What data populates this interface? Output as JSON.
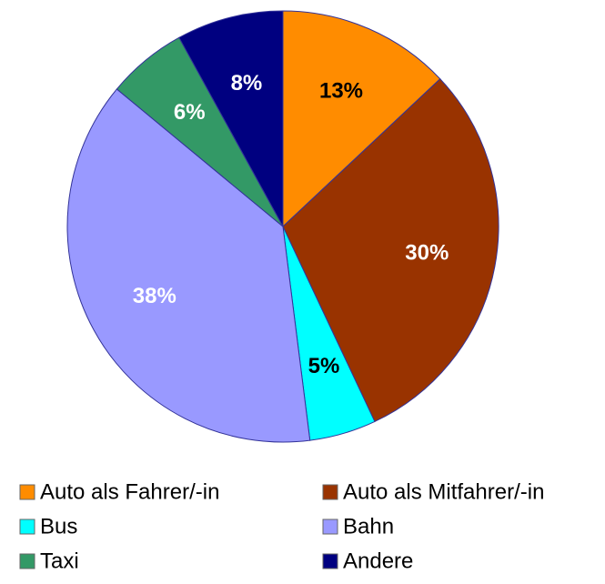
{
  "chart_data": {
    "type": "pie",
    "categories": [
      "Auto als Fahrer/-in",
      "Auto als Mitfahrer/-in",
      "Bus",
      "Bahn",
      "Taxi",
      "Andere"
    ],
    "values": [
      13,
      30,
      5,
      38,
      6,
      8
    ],
    "value_labels": [
      "13%",
      "30%",
      "5%",
      "38%",
      "6%",
      "8%"
    ],
    "colors": [
      "#ff8c00",
      "#993300",
      "#00ffff",
      "#9999ff",
      "#339966",
      "#000080"
    ],
    "label_colors": [
      "#000000",
      "#ffffff",
      "#000000",
      "#ffffff",
      "#ffffff",
      "#ffffff"
    ],
    "legend": "bottom"
  }
}
